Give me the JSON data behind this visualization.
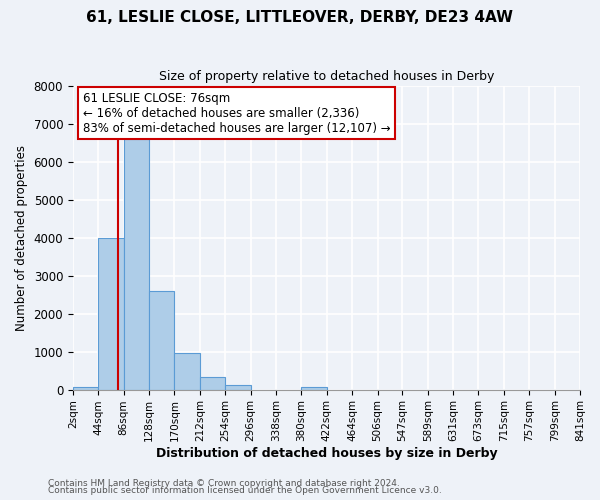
{
  "title": "61, LESLIE CLOSE, LITTLEOVER, DERBY, DE23 4AW",
  "subtitle": "Size of property relative to detached houses in Derby",
  "xlabel": "Distribution of detached houses by size in Derby",
  "ylabel": "Number of detached properties",
  "bin_edges": [
    2,
    44,
    86,
    128,
    170,
    212,
    254,
    296,
    338,
    380,
    422,
    464,
    506,
    547,
    589,
    631,
    673,
    715,
    757,
    799,
    841
  ],
  "bin_values": [
    60,
    4000,
    6600,
    2600,
    950,
    320,
    130,
    0,
    0,
    80,
    0,
    0,
    0,
    0,
    0,
    0,
    0,
    0,
    0,
    0
  ],
  "bar_color": "#aecde8",
  "bar_edge_color": "#5b9bd5",
  "property_line_x": 76,
  "property_line_color": "#cc0000",
  "annotation_line1": "61 LESLIE CLOSE: 76sqm",
  "annotation_line2": "← 16% of detached houses are smaller (2,336)",
  "annotation_line3": "83% of semi-detached houses are larger (12,107) →",
  "annotation_box_color": "#ffffff",
  "annotation_box_edge_color": "#cc0000",
  "ylim": [
    0,
    8000
  ],
  "tick_labels": [
    "2sqm",
    "44sqm",
    "86sqm",
    "128sqm",
    "170sqm",
    "212sqm",
    "254sqm",
    "296sqm",
    "338sqm",
    "380sqm",
    "422sqm",
    "464sqm",
    "506sqm",
    "547sqm",
    "589sqm",
    "631sqm",
    "673sqm",
    "715sqm",
    "757sqm",
    "799sqm",
    "841sqm"
  ],
  "footer_line1": "Contains HM Land Registry data © Crown copyright and database right 2024.",
  "footer_line2": "Contains public sector information licensed under the Open Government Licence v3.0.",
  "background_color": "#eef2f8",
  "grid_color": "#ffffff",
  "plot_bg_color": "#eef2f8"
}
